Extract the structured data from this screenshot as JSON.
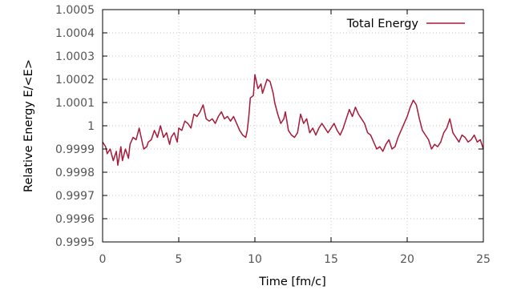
{
  "chart_data": {
    "type": "line",
    "xlabel": "Time [fm/c]",
    "ylabel": "Relative Energy E/<E>",
    "xlim": [
      0,
      25
    ],
    "ylim": [
      0.9995,
      1.0005
    ],
    "x_ticks": [
      0,
      5,
      10,
      15,
      20,
      25
    ],
    "x_tick_labels": [
      "0",
      "5",
      "10",
      "15",
      "20",
      "25"
    ],
    "y_ticks": [
      0.9995,
      0.9996,
      0.9997,
      0.9998,
      0.9999,
      1.0,
      1.0001,
      1.0002,
      1.0003,
      1.0004,
      1.0005
    ],
    "y_tick_labels": [
      "0.9995",
      "0.9996",
      "0.9997",
      "0.9998",
      "0.9999",
      "1",
      "1.0001",
      "1.0002",
      "1.0003",
      "1.0004",
      "1.0005"
    ],
    "grid": true,
    "legend_position": "top-right",
    "series": [
      {
        "name": "Total Energy",
        "color": "#a8193a",
        "x": [
          0,
          0.2,
          0.3,
          0.5,
          0.7,
          0.9,
          1.0,
          1.2,
          1.3,
          1.5,
          1.7,
          1.8,
          2.0,
          2.2,
          2.4,
          2.5,
          2.7,
          2.9,
          3.0,
          3.2,
          3.4,
          3.6,
          3.8,
          4.0,
          4.2,
          4.4,
          4.5,
          4.7,
          4.9,
          5.0,
          5.2,
          5.4,
          5.6,
          5.8,
          6.0,
          6.2,
          6.4,
          6.6,
          6.8,
          7.0,
          7.2,
          7.4,
          7.6,
          7.8,
          8.0,
          8.2,
          8.4,
          8.6,
          8.8,
          9.0,
          9.2,
          9.4,
          9.5,
          9.6,
          9.7,
          9.9,
          10.0,
          10.2,
          10.4,
          10.5,
          10.6,
          10.8,
          11.0,
          11.2,
          11.3,
          11.5,
          11.7,
          11.9,
          12.0,
          12.2,
          12.4,
          12.6,
          12.8,
          13.0,
          13.2,
          13.4,
          13.6,
          13.8,
          14.0,
          14.2,
          14.4,
          14.6,
          14.8,
          15.0,
          15.2,
          15.4,
          15.6,
          15.8,
          16.0,
          16.2,
          16.4,
          16.6,
          16.8,
          17.0,
          17.2,
          17.4,
          17.6,
          17.8,
          18.0,
          18.2,
          18.4,
          18.6,
          18.8,
          19.0,
          19.2,
          19.4,
          19.6,
          19.8,
          20.0,
          20.2,
          20.4,
          20.6,
          20.8,
          21.0,
          21.2,
          21.4,
          21.6,
          21.8,
          22.0,
          22.2,
          22.4,
          22.6,
          22.8,
          23.0,
          23.2,
          23.4,
          23.6,
          23.8,
          24.0,
          24.2,
          24.4,
          24.6,
          24.8,
          25.0
        ],
        "y": [
          0.99993,
          0.99991,
          0.99988,
          0.9999,
          0.99985,
          0.99989,
          0.99983,
          0.99991,
          0.99985,
          0.9999,
          0.99986,
          0.99992,
          0.99995,
          0.99994,
          0.99999,
          0.99996,
          0.9999,
          0.99991,
          0.99993,
          0.99994,
          0.99998,
          0.99995,
          1.0,
          0.99995,
          0.99997,
          0.99992,
          0.99995,
          0.99997,
          0.99993,
          0.99999,
          0.99998,
          1.00002,
          1.00001,
          0.99999,
          1.00005,
          1.00004,
          1.00006,
          1.00009,
          1.00003,
          1.00002,
          1.00003,
          1.00001,
          1.00004,
          1.00006,
          1.00003,
          1.00004,
          1.00002,
          1.00004,
          1.00001,
          0.99998,
          0.99996,
          0.99995,
          0.99998,
          1.00004,
          1.00012,
          1.00013,
          1.00022,
          1.00016,
          1.00018,
          1.00014,
          1.00016,
          1.0002,
          1.00019,
          1.00014,
          1.0001,
          1.00005,
          1.00001,
          1.00003,
          1.00006,
          0.99998,
          0.99996,
          0.99995,
          0.99997,
          1.00005,
          1.00001,
          1.00003,
          0.99997,
          0.99999,
          0.99996,
          0.99999,
          1.00001,
          0.99999,
          0.99997,
          0.99999,
          1.00001,
          0.99998,
          0.99996,
          0.99999,
          1.00003,
          1.00007,
          1.00004,
          1.00008,
          1.00005,
          1.00003,
          1.00001,
          0.99997,
          0.99996,
          0.99993,
          0.9999,
          0.99991,
          0.99989,
          0.99992,
          0.99994,
          0.9999,
          0.99991,
          0.99995,
          0.99998,
          1.00001,
          1.00004,
          1.00008,
          1.00011,
          1.00009,
          1.00003,
          0.99998,
          0.99996,
          0.99994,
          0.9999,
          0.99992,
          0.99991,
          0.99993,
          0.99997,
          0.99999,
          1.00003,
          0.99997,
          0.99995,
          0.99993,
          0.99996,
          0.99995,
          0.99993,
          0.99994,
          0.99996,
          0.99993,
          0.99994,
          0.9999
        ]
      }
    ]
  }
}
